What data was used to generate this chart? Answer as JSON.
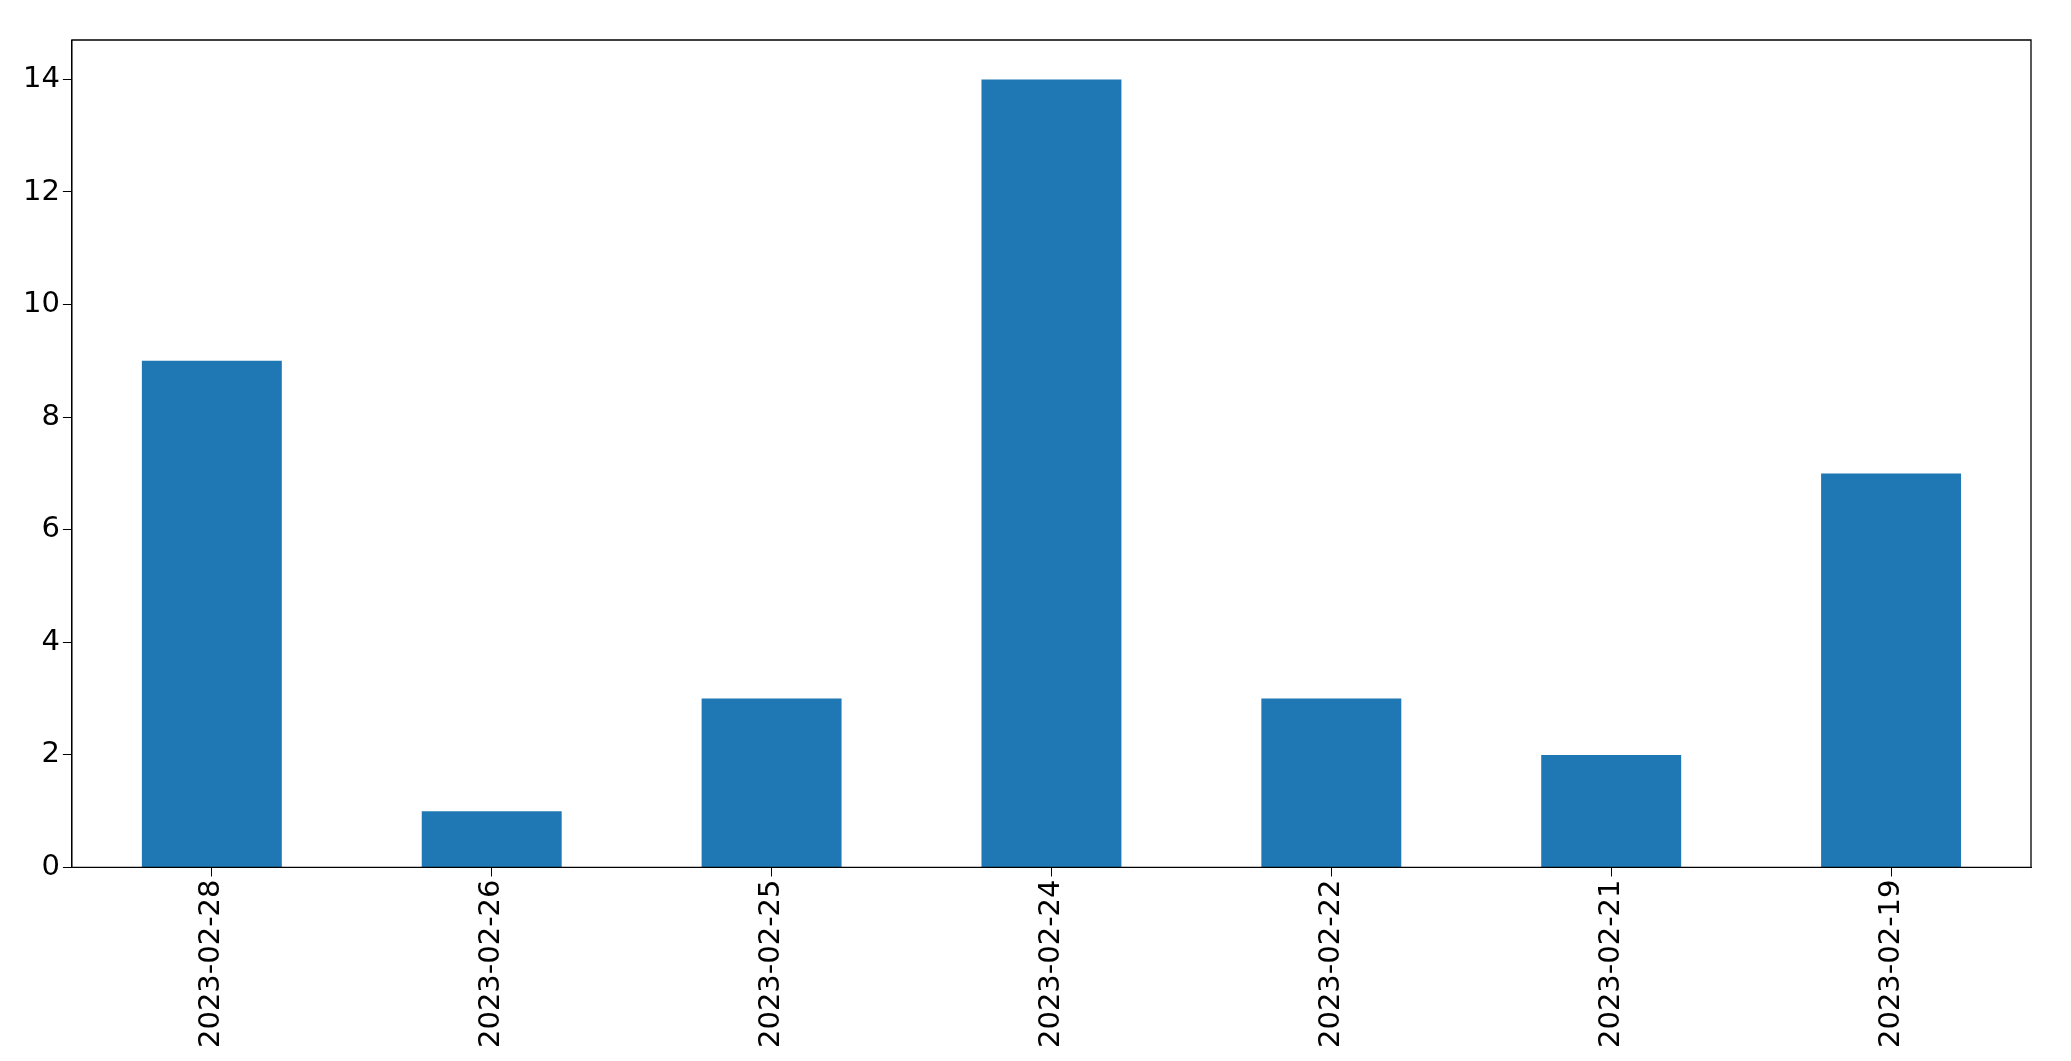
{
  "chart_data": {
    "type": "bar",
    "categories": [
      "2023-02-28",
      "2023-02-26",
      "2023-02-25",
      "2023-02-24",
      "2023-02-22",
      "2023-02-21",
      "2023-02-19"
    ],
    "values": [
      9,
      1,
      3,
      14,
      3,
      2,
      7
    ],
    "color": "#1f77b4",
    "ylim": [
      0,
      14.7
    ],
    "yticks": [
      0,
      2,
      4,
      6,
      8,
      10,
      12,
      14
    ],
    "grid": false,
    "legend": false
  }
}
